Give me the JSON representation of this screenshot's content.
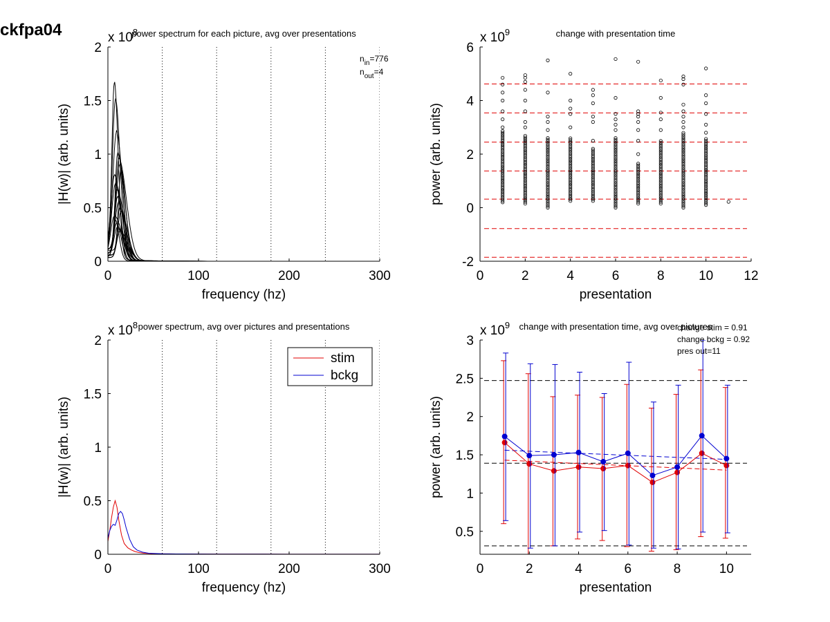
{
  "figure": {
    "label": "ckfpa04"
  },
  "chart_data": [
    {
      "id": "tl",
      "type": "line",
      "title": "power spectrum for each picture, avg over presentations",
      "xlabel": "frequency (hz)",
      "ylabel": "|H(w)| (arb. units)",
      "exponent_label": "x 10",
      "exponent_power": "8",
      "xlim": [
        0,
        300
      ],
      "ylim": [
        0,
        2
      ],
      "xticks": [
        "0",
        "100",
        "200",
        "300"
      ],
      "yticks": [
        "0",
        "0.5",
        "1",
        "1.5",
        "2"
      ],
      "vlines": [
        60,
        120,
        180,
        240,
        300
      ],
      "annotations": [
        {
          "base": "n",
          "sub": "in",
          "rest": "=776"
        },
        {
          "base": "n",
          "sub": "out",
          "rest": "=4"
        }
      ],
      "series_description": "many per-picture spectra, peak near 8-12 hz, max about 1.66",
      "peak_heights": [
        1.66,
        1.5,
        1.2,
        1.0,
        0.95,
        0.9,
        0.85,
        0.8,
        0.72,
        0.66,
        0.6,
        0.55,
        0.5,
        0.46,
        0.42,
        0.38,
        0.35,
        0.32,
        0.3,
        0.28
      ]
    },
    {
      "id": "tr",
      "type": "scatter",
      "title": "change with presentation time",
      "xlabel": "presentation",
      "ylabel": "power (arb. units)",
      "exponent_label": "x 10",
      "exponent_power": "9",
      "xlim": [
        0,
        12
      ],
      "ylim": [
        -2,
        6
      ],
      "xticks": [
        "0",
        "2",
        "4",
        "6",
        "8",
        "10",
        "12"
      ],
      "yticks": [
        "-2",
        "0",
        "2",
        "4",
        "6"
      ],
      "hlines": [
        -1.85,
        -0.78,
        0.32,
        1.37,
        2.45,
        3.54,
        4.62
      ],
      "hline_color": "#e00000",
      "columns": [
        {
          "x": 1,
          "ymin": 0.2,
          "ymax": 2.9,
          "outliers": [
            3.0,
            3.3,
            3.6,
            4.0,
            4.3,
            4.6,
            4.85
          ]
        },
        {
          "x": 2,
          "ymin": 0.15,
          "ymax": 2.7,
          "outliers": [
            3.0,
            3.2,
            3.6,
            4.0,
            4.4,
            4.7,
            4.85,
            4.95
          ]
        },
        {
          "x": 3,
          "ymin": 0.0,
          "ymax": 2.6,
          "outliers": [
            2.9,
            3.2,
            3.4,
            4.3,
            5.5
          ]
        },
        {
          "x": 4,
          "ymin": 0.25,
          "ymax": 2.6,
          "outliers": [
            3.0,
            3.5,
            3.7,
            4.0,
            5.0
          ]
        },
        {
          "x": 5,
          "ymin": 0.25,
          "ymax": 2.2,
          "outliers": [
            2.5,
            3.2,
            3.4,
            3.9,
            4.2,
            4.4
          ]
        },
        {
          "x": 6,
          "ymin": 0.0,
          "ymax": 2.6,
          "outliers": [
            2.9,
            3.1,
            3.3,
            3.5,
            4.1,
            5.55
          ]
        },
        {
          "x": 7,
          "ymin": 0.15,
          "ymax": 1.7,
          "outliers": [
            2.0,
            2.5,
            2.9,
            3.2,
            3.4,
            3.5,
            3.6,
            5.45
          ]
        },
        {
          "x": 8,
          "ymin": 0.15,
          "ymax": 2.5,
          "outliers": [
            2.9,
            3.3,
            3.55,
            4.1,
            4.75
          ]
        },
        {
          "x": 9,
          "ymin": 0.0,
          "ymax": 2.8,
          "outliers": [
            3.0,
            3.2,
            3.4,
            3.6,
            3.85,
            4.6,
            4.8,
            4.9
          ]
        },
        {
          "x": 10,
          "ymin": 0.1,
          "ymax": 2.6,
          "outliers": [
            2.8,
            3.1,
            3.5,
            3.9,
            4.2,
            5.2
          ]
        },
        {
          "x": 11,
          "ymin": 0.22,
          "ymax": 0.22,
          "outliers": []
        }
      ]
    },
    {
      "id": "bl",
      "type": "line",
      "title": "power spectrum, avg over pictures and presentations",
      "xlabel": "frequency (hz)",
      "ylabel": "|H(w)| (arb. units)",
      "exponent_label": "x 10",
      "exponent_power": "8",
      "xlim": [
        0,
        300
      ],
      "ylim": [
        0,
        2
      ],
      "xticks": [
        "0",
        "100",
        "200",
        "300"
      ],
      "yticks": [
        "0",
        "0.5",
        "1",
        "1.5",
        "2"
      ],
      "vlines": [
        60,
        120,
        180,
        240,
        300
      ],
      "legend_position": "top-right",
      "series": [
        {
          "name": "stim",
          "color": "#e00000",
          "x": [
            0,
            2,
            4,
            6,
            8,
            10,
            12,
            15,
            18,
            22,
            26,
            30,
            35,
            40,
            50,
            60,
            80,
            120,
            200,
            300
          ],
          "y": [
            0.12,
            0.22,
            0.34,
            0.44,
            0.5,
            0.44,
            0.32,
            0.18,
            0.1,
            0.06,
            0.04,
            0.025,
            0.015,
            0.01,
            0.006,
            0.004,
            0.003,
            0.002,
            0.001,
            0.001
          ]
        },
        {
          "name": "bckg",
          "color": "#0000d0",
          "x": [
            0,
            2,
            4,
            6,
            8,
            10,
            12,
            14,
            16,
            18,
            20,
            24,
            28,
            32,
            38,
            45,
            60,
            80,
            120,
            200,
            300
          ],
          "y": [
            0.15,
            0.22,
            0.26,
            0.28,
            0.27,
            0.32,
            0.38,
            0.4,
            0.38,
            0.32,
            0.25,
            0.14,
            0.07,
            0.04,
            0.02,
            0.01,
            0.005,
            0.003,
            0.002,
            0.001,
            0.001
          ]
        }
      ]
    },
    {
      "id": "br",
      "type": "line",
      "title": "change with presentation time, avg over pictures",
      "xlabel": "presentation",
      "ylabel": "power (arb. units)",
      "exponent_label": "x 10",
      "exponent_power": "9",
      "xlim": [
        0,
        11
      ],
      "ylim": [
        0.2,
        3
      ],
      "xticks": [
        "0",
        "2",
        "4",
        "6",
        "8",
        "10"
      ],
      "yticks": [
        "0.5",
        "1",
        "1.5",
        "2",
        "2.5",
        "3"
      ],
      "annotations": [
        "change stim = 0.91",
        "change bckg = 0.92",
        "pres out=11"
      ],
      "hlines": [
        0.31,
        1.39,
        2.47
      ],
      "hline_color": "#000000",
      "fit_lines": [
        {
          "color": "#e00000",
          "x": [
            1,
            10
          ],
          "y": [
            1.43,
            1.3
          ]
        },
        {
          "color": "#0000d0",
          "x": [
            1,
            10
          ],
          "y": [
            1.56,
            1.44
          ]
        }
      ],
      "series": [
        {
          "name": "stim",
          "color": "#e00000",
          "x": [
            1,
            2,
            3,
            4,
            5,
            6,
            7,
            8,
            9,
            10
          ],
          "y": [
            1.66,
            1.38,
            1.29,
            1.34,
            1.32,
            1.36,
            1.14,
            1.27,
            1.52,
            1.36
          ],
          "err_low": [
            0.6,
            0.2,
            0.31,
            0.4,
            0.38,
            0.3,
            0.24,
            0.26,
            0.43,
            0.41
          ],
          "err_high": [
            2.73,
            2.56,
            2.26,
            2.28,
            2.25,
            2.42,
            2.11,
            2.29,
            2.61,
            2.38
          ]
        },
        {
          "name": "bckg",
          "color": "#0000d0",
          "x": [
            1,
            2,
            3,
            4,
            5,
            6,
            7,
            8,
            9,
            10
          ],
          "y": [
            1.74,
            1.49,
            1.5,
            1.53,
            1.41,
            1.52,
            1.23,
            1.34,
            1.75,
            1.45
          ],
          "err_low": [
            0.64,
            0.28,
            0.31,
            0.49,
            0.51,
            0.32,
            0.28,
            0.27,
            0.49,
            0.48
          ],
          "err_high": [
            2.83,
            2.69,
            2.68,
            2.58,
            2.3,
            2.71,
            2.19,
            2.41,
            3.0,
            2.41
          ]
        }
      ]
    }
  ]
}
